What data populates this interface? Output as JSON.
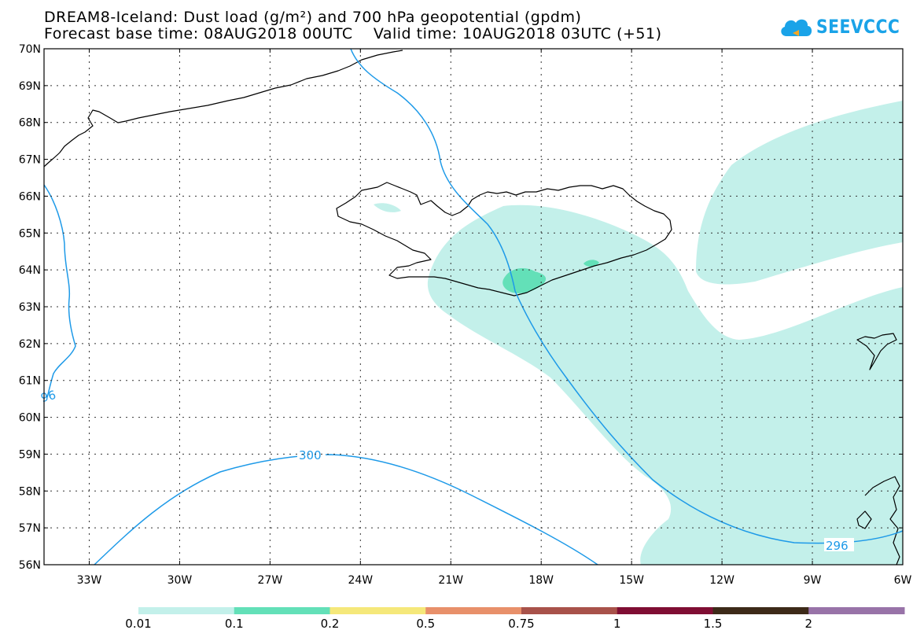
{
  "title": {
    "line1": "DREAM8-Iceland: Dust load (g/m²) and 700 hPa geopotential (gpdm)",
    "line2": "Forecast base time: 08AUG2018 00UTC    Valid time: 10AUG2018 03UTC (+51)"
  },
  "logo": {
    "text": "SEEVCCC",
    "icon": "cloud-logo-icon"
  },
  "map": {
    "lat_labels": [
      "70N",
      "69N",
      "68N",
      "67N",
      "66N",
      "65N",
      "64N",
      "63N",
      "62N",
      "61N",
      "60N",
      "59N",
      "58N",
      "57N",
      "56N"
    ],
    "lon_labels": [
      "33W",
      "30W",
      "27W",
      "24W",
      "21W",
      "18W",
      "15W",
      "12W",
      "9W",
      "6W"
    ],
    "contour_labels": [
      "96",
      "300",
      "296"
    ],
    "colors": {
      "dust_light": "#c3f0ea",
      "dust_medium": "#63e0b8",
      "contour": "#1e9ae8",
      "coast": "#000000"
    }
  },
  "colorbar": {
    "labels": [
      "0.01",
      "0.1",
      "0.2",
      "0.5",
      "0.75",
      "1",
      "1.5",
      "2"
    ],
    "colors": [
      "#c3f0ea",
      "#63e0b8",
      "#f5e87a",
      "#e8906a",
      "#a8524a",
      "#7f0e33",
      "#3d2a18",
      "#9873a8"
    ]
  }
}
